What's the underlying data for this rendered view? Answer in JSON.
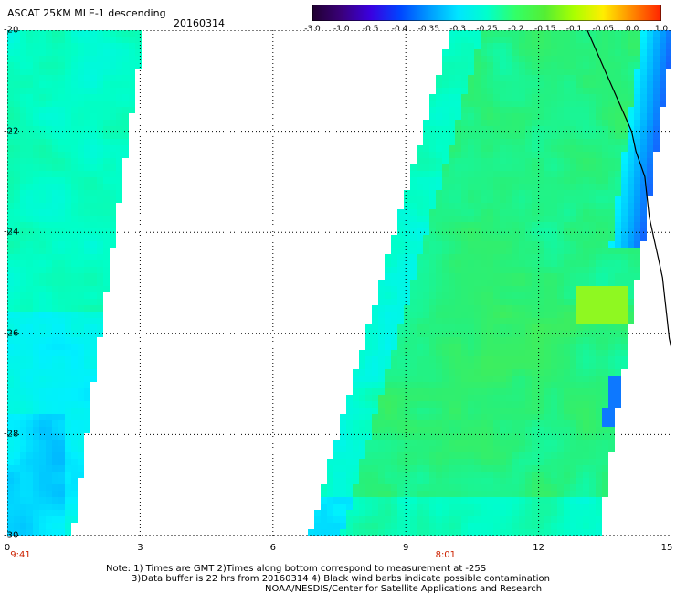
{
  "header": {
    "title": "ASCAT 25KM MLE-1 descending",
    "date": "20160314"
  },
  "colorbar": {
    "tick_labels": [
      "-3.0",
      "-1.0",
      "-0.5",
      "-0.4",
      "-0.35",
      "-0.3",
      "-0.25",
      "-0.2",
      "-0.15",
      "-0.1",
      "-0.05",
      "0.0",
      "1.0"
    ],
    "colors": [
      "#200030",
      "#3a007a",
      "#3a00e0",
      "#0044ff",
      "#0099ff",
      "#00e5ff",
      "#00ffcc",
      "#33ff66",
      "#55ee33",
      "#aaff00",
      "#ffee00",
      "#ff8800",
      "#ff2200"
    ]
  },
  "map": {
    "lat_labels": [
      "-20",
      "-22",
      "-24",
      "-26",
      "-28",
      "-30"
    ],
    "lon_labels": [
      "0",
      "3",
      "6",
      "9",
      "12",
      "15"
    ],
    "pass_times": [
      "9:41",
      "8:01"
    ],
    "lat_range": [
      -30,
      -20
    ],
    "lon_range": [
      0,
      15
    ],
    "grid": "dotted"
  },
  "notes": {
    "line1": "Note: 1) Times are GMT 2)Times along bottom correspond to measurement at -25S",
    "line2": "3)Data buffer is 22 hrs from 20160314 4) Black wind barbs indicate possible contamination",
    "line3": "NOAA/NESDIS/Center for Satellite Applications and Research"
  },
  "chart_data": {
    "type": "heatmap",
    "title": "ASCAT 25KM MLE-1 descending",
    "xlabel": "",
    "ylabel": "",
    "xlim": [
      0,
      15
    ],
    "ylim": [
      -30,
      -20
    ],
    "swaths": [
      {
        "pass_time": "9:41",
        "lon_at_north": [
          0,
          3.0
        ],
        "lon_at_south": [
          0,
          1.4
        ]
      },
      {
        "pass_time": "8:01",
        "lon_at_north": [
          10.1,
          15
        ],
        "lon_at_south": [
          6.9,
          13.3
        ]
      }
    ],
    "value_range": [
      -3.0,
      1.0
    ],
    "dominant_values": [
      -0.3,
      -0.25,
      -0.2,
      -0.15
    ]
  }
}
